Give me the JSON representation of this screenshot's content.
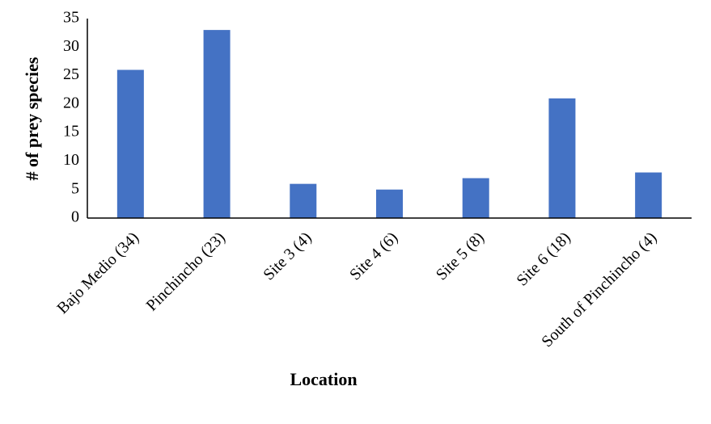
{
  "chart_data": {
    "type": "bar",
    "x_label": "Location",
    "y_label": "# of prey species",
    "categories": [
      "Bajo Medio (34)",
      "Pinchincho (23)",
      "Site 3 (4)",
      "Site 4 (6)",
      "Site 5 (8)",
      "Site 6 (18)",
      "South of Pinchincho (4)"
    ],
    "values": [
      26,
      33,
      6,
      5,
      7,
      21,
      8
    ],
    "color": "#4472c4",
    "ylim": [
      0,
      35
    ],
    "yticks": [
      0,
      5,
      10,
      15,
      20,
      25,
      30,
      35
    ],
    "grid": false
  }
}
